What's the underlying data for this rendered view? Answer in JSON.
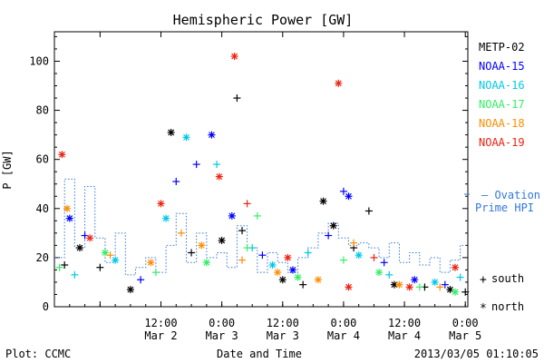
{
  "chart_data": {
    "type": "scatter",
    "title": "Hemispheric Power [GW]",
    "ylabel": "P [GW]",
    "xlabel": "Date and Time",
    "ylim": [
      0,
      112
    ],
    "xlim": [
      "2013-03-01 15:00",
      "2013-03-05 00:30"
    ],
    "yticks": [
      0,
      20,
      40,
      60,
      80,
      100
    ],
    "xticks": [
      {
        "t": "2013-03-02 00:00",
        "line1": "",
        "line2": ""
      },
      {
        "t": "2013-03-02 12:00",
        "line1": "12:00",
        "line2": "Mar 2"
      },
      {
        "t": "2013-03-03 00:00",
        "line1": "0:00",
        "line2": "Mar 3"
      },
      {
        "t": "2013-03-03 12:00",
        "line1": "12:00",
        "line2": "Mar 3"
      },
      {
        "t": "2013-03-04 00:00",
        "line1": "0:00",
        "line2": "Mar 4"
      },
      {
        "t": "2013-03-04 12:00",
        "line1": "12:00",
        "line2": "Mar 4"
      },
      {
        "t": "2013-03-05 00:00",
        "line1": "0:00",
        "line2": "Mar 5"
      }
    ],
    "legend_placement": "right",
    "grid": false,
    "series": [
      {
        "name": "METP-02",
        "color": "#000000",
        "points": [
          [
            "2013-03-01 17:00",
            17,
            "south"
          ],
          [
            "2013-03-01 20:00",
            24,
            "north"
          ],
          [
            "2013-03-02 00:00",
            16,
            "south"
          ],
          [
            "2013-03-02 06:00",
            7,
            "north"
          ],
          [
            "2013-03-02 14:00",
            71,
            "north"
          ],
          [
            "2013-03-02 18:00",
            22,
            "south"
          ],
          [
            "2013-03-03 00:00",
            27,
            "north"
          ],
          [
            "2013-03-03 03:00",
            85,
            "south"
          ],
          [
            "2013-03-03 04:00",
            31,
            "south"
          ],
          [
            "2013-03-03 12:00",
            11,
            "north"
          ],
          [
            "2013-03-03 16:00",
            9,
            "south"
          ],
          [
            "2013-03-03 20:00",
            43,
            "north"
          ],
          [
            "2013-03-03 22:00",
            33,
            "north"
          ],
          [
            "2013-03-04 02:00",
            24,
            "south"
          ],
          [
            "2013-03-04 05:00",
            39,
            "south"
          ],
          [
            "2013-03-04 10:00",
            9,
            "north"
          ],
          [
            "2013-03-04 16:00",
            8,
            "south"
          ],
          [
            "2013-03-04 21:00",
            7,
            "north"
          ],
          [
            "2013-03-05 00:00",
            6,
            "south"
          ]
        ]
      },
      {
        "name": "NOAA-15",
        "color": "#0000ff",
        "points": [
          [
            "2013-03-01 18:00",
            36,
            "north"
          ],
          [
            "2013-03-01 21:00",
            29,
            "south"
          ],
          [
            "2013-03-02 08:00",
            11,
            "south"
          ],
          [
            "2013-03-02 15:00",
            51,
            "south"
          ],
          [
            "2013-03-02 19:00",
            58,
            "south"
          ],
          [
            "2013-03-02 22:00",
            70,
            "north"
          ],
          [
            "2013-03-03 02:00",
            37,
            "north"
          ],
          [
            "2013-03-03 08:00",
            21,
            "south"
          ],
          [
            "2013-03-03 14:00",
            15,
            "north"
          ],
          [
            "2013-03-03 21:00",
            29,
            "south"
          ],
          [
            "2013-03-04 00:00",
            47,
            "south"
          ],
          [
            "2013-03-04 01:00",
            45,
            "north"
          ],
          [
            "2013-03-04 08:00",
            18,
            "south"
          ],
          [
            "2013-03-04 14:00",
            11,
            "north"
          ],
          [
            "2013-03-04 20:00",
            9,
            "south"
          ]
        ]
      },
      {
        "name": "NOAA-16",
        "color": "#00c8e8",
        "points": [
          [
            "2013-03-01 19:00",
            13,
            "south"
          ],
          [
            "2013-03-02 03:00",
            19,
            "north"
          ],
          [
            "2013-03-02 13:00",
            36,
            "north"
          ],
          [
            "2013-03-02 17:00",
            69,
            "north"
          ],
          [
            "2013-03-02 23:00",
            58,
            "south"
          ],
          [
            "2013-03-03 06:00",
            24,
            "south"
          ],
          [
            "2013-03-03 10:00",
            17,
            "north"
          ],
          [
            "2013-03-03 17:00",
            22,
            "south"
          ],
          [
            "2013-03-04 03:00",
            21,
            "north"
          ],
          [
            "2013-03-04 09:00",
            13,
            "south"
          ],
          [
            "2013-03-04 18:00",
            10,
            "north"
          ],
          [
            "2013-03-04 23:00",
            12,
            "south"
          ]
        ]
      },
      {
        "name": "NOAA-17",
        "color": "#33ee66",
        "points": [
          [
            "2013-03-01 16:00",
            16,
            "south"
          ],
          [
            "2013-03-02 01:00",
            22,
            "north"
          ],
          [
            "2013-03-02 11:00",
            14,
            "south"
          ],
          [
            "2013-03-02 21:00",
            18,
            "north"
          ],
          [
            "2013-03-03 05:00",
            24,
            "south"
          ],
          [
            "2013-03-03 07:00",
            37,
            "south"
          ],
          [
            "2013-03-03 15:00",
            12,
            "north"
          ],
          [
            "2013-03-04 00:00",
            19,
            "south"
          ],
          [
            "2013-03-04 07:00",
            14,
            "north"
          ],
          [
            "2013-03-04 15:00",
            8,
            "south"
          ],
          [
            "2013-03-04 22:00",
            6,
            "north"
          ]
        ]
      },
      {
        "name": "NOAA-18",
        "color": "#ff8c00",
        "points": [
          [
            "2013-03-01 17:30",
            40,
            "north"
          ],
          [
            "2013-03-02 02:00",
            21,
            "south"
          ],
          [
            "2013-03-02 10:00",
            18,
            "north"
          ],
          [
            "2013-03-02 16:00",
            30,
            "south"
          ],
          [
            "2013-03-02 20:00",
            25,
            "north"
          ],
          [
            "2013-03-03 04:00",
            19,
            "south"
          ],
          [
            "2013-03-03 11:00",
            14,
            "north"
          ],
          [
            "2013-03-03 19:00",
            11,
            "north"
          ],
          [
            "2013-03-04 02:00",
            26,
            "south"
          ],
          [
            "2013-03-04 11:00",
            9,
            "north"
          ],
          [
            "2013-03-04 19:00",
            8,
            "south"
          ]
        ]
      },
      {
        "name": "NOAA-19",
        "color": "#ee2211",
        "points": [
          [
            "2013-03-01 16:30",
            62,
            "north"
          ],
          [
            "2013-03-01 22:00",
            28,
            "north"
          ],
          [
            "2013-03-02 12:00",
            42,
            "north"
          ],
          [
            "2013-03-02 23:30",
            53,
            "north"
          ],
          [
            "2013-03-03 02:30",
            102,
            "north"
          ],
          [
            "2013-03-03 05:00",
            42,
            "south"
          ],
          [
            "2013-03-03 13:00",
            20,
            "north"
          ],
          [
            "2013-03-03 23:00",
            91,
            "north"
          ],
          [
            "2013-03-04 01:00",
            8,
            "north"
          ],
          [
            "2013-03-04 06:00",
            20,
            "south"
          ],
          [
            "2013-03-04 13:00",
            8,
            "north"
          ],
          [
            "2013-03-04 22:00",
            16,
            "north"
          ]
        ]
      }
    ],
    "ovation": {
      "name_line1": "— Ovation",
      "name_line2": "Prime HPI",
      "color": "#3377dd",
      "times": [
        "2013-03-01 15:00",
        "2013-03-01 17:00",
        "2013-03-01 19:00",
        "2013-03-01 21:00",
        "2013-03-01 23:00",
        "2013-03-02 01:00",
        "2013-03-02 03:00",
        "2013-03-02 05:00",
        "2013-03-02 07:00",
        "2013-03-02 09:00",
        "2013-03-02 11:00",
        "2013-03-02 13:00",
        "2013-03-02 15:00",
        "2013-03-02 17:00",
        "2013-03-02 19:00",
        "2013-03-02 21:00",
        "2013-03-02 23:00",
        "2013-03-03 01:00",
        "2013-03-03 03:00",
        "2013-03-03 05:00",
        "2013-03-03 07:00",
        "2013-03-03 09:00",
        "2013-03-03 11:00",
        "2013-03-03 13:00",
        "2013-03-03 15:00",
        "2013-03-03 17:00",
        "2013-03-03 19:00",
        "2013-03-03 21:00",
        "2013-03-03 23:00",
        "2013-03-04 01:00",
        "2013-03-04 03:00",
        "2013-03-04 05:00",
        "2013-03-04 07:00",
        "2013-03-04 09:00",
        "2013-03-04 11:00",
        "2013-03-04 13:00",
        "2013-03-04 15:00",
        "2013-03-04 17:00",
        "2013-03-04 19:00",
        "2013-03-04 21:00",
        "2013-03-04 23:00",
        "2013-03-05 00:30"
      ],
      "values": [
        20,
        52,
        24,
        49,
        28,
        18,
        30,
        13,
        16,
        20,
        14,
        25,
        38,
        18,
        30,
        20,
        22,
        16,
        33,
        24,
        14,
        22,
        18,
        14,
        20,
        24,
        30,
        34,
        28,
        25,
        26,
        24,
        20,
        26,
        18,
        22,
        17,
        20,
        14,
        19,
        25,
        25
      ]
    }
  },
  "legend_markers": {
    "south_symbol": "+",
    "south_label": "south",
    "north_symbol": "*",
    "north_label": "north"
  },
  "footer": {
    "left": "Plot: CCMC",
    "center": "Date and Time",
    "right": "2013/03/05 01:10:05"
  }
}
